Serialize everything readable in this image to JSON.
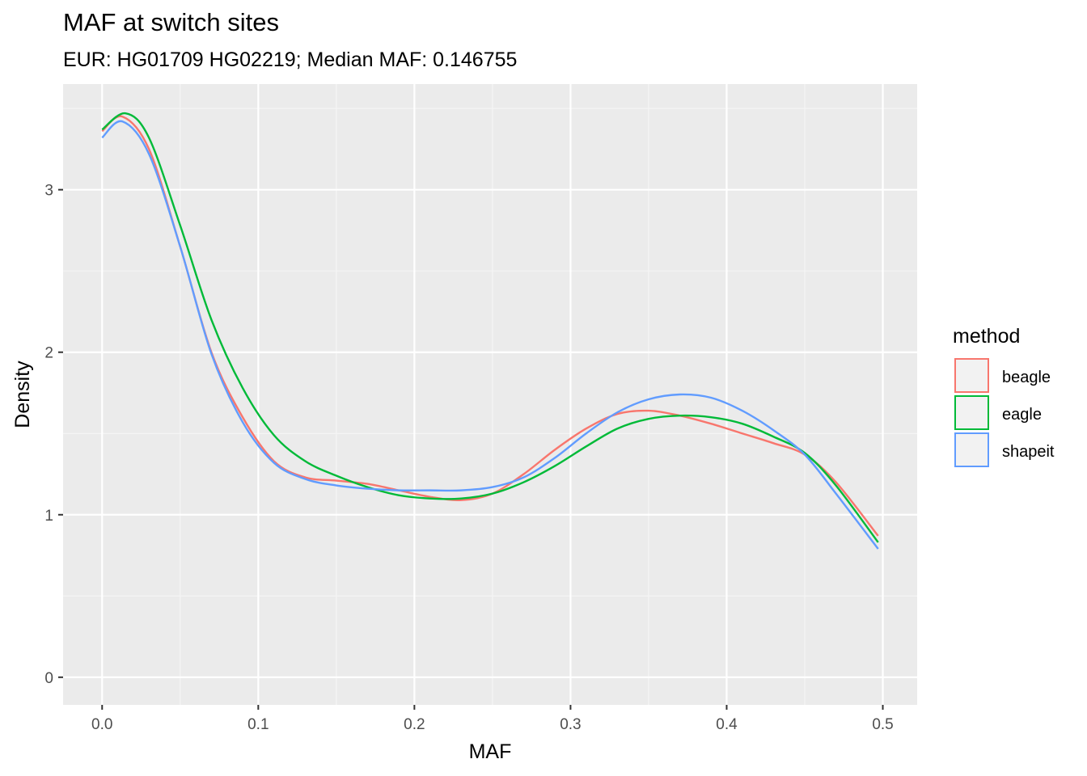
{
  "chart_data": {
    "type": "line",
    "title": "MAF at switch sites",
    "subtitle": "EUR: HG01709 HG02219; Median MAF: 0.146755",
    "xlabel": "MAF",
    "ylabel": "Density",
    "xlim": [
      -0.025,
      0.522
    ],
    "ylim": [
      -0.17,
      3.65
    ],
    "x_ticks": [
      0.0,
      0.1,
      0.2,
      0.3,
      0.4,
      0.5
    ],
    "x_tick_labels": [
      "0.0",
      "0.1",
      "0.2",
      "0.3",
      "0.4",
      "0.5"
    ],
    "y_ticks": [
      0,
      1,
      2,
      3
    ],
    "y_tick_labels": [
      "0",
      "1",
      "2",
      "3"
    ],
    "grid": true,
    "legend": {
      "title": "method",
      "position": "right"
    },
    "series": [
      {
        "name": "beagle",
        "color": "#F8766D",
        "x": [
          0.0,
          0.013,
          0.03,
          0.05,
          0.07,
          0.09,
          0.11,
          0.13,
          0.15,
          0.17,
          0.19,
          0.21,
          0.23,
          0.25,
          0.27,
          0.29,
          0.31,
          0.33,
          0.35,
          0.37,
          0.39,
          0.41,
          0.43,
          0.45,
          0.47,
          0.497
        ],
        "y": [
          3.36,
          3.45,
          3.25,
          2.65,
          2.0,
          1.6,
          1.33,
          1.23,
          1.21,
          1.19,
          1.15,
          1.11,
          1.09,
          1.13,
          1.25,
          1.4,
          1.53,
          1.62,
          1.64,
          1.61,
          1.56,
          1.5,
          1.44,
          1.37,
          1.2,
          0.87
        ]
      },
      {
        "name": "eagle",
        "color": "#00BA38",
        "x": [
          0.0,
          0.015,
          0.03,
          0.05,
          0.07,
          0.09,
          0.11,
          0.13,
          0.15,
          0.17,
          0.19,
          0.21,
          0.23,
          0.25,
          0.27,
          0.29,
          0.31,
          0.33,
          0.35,
          0.37,
          0.39,
          0.41,
          0.43,
          0.45,
          0.47,
          0.497
        ],
        "y": [
          3.37,
          3.47,
          3.32,
          2.78,
          2.2,
          1.78,
          1.49,
          1.33,
          1.24,
          1.17,
          1.12,
          1.1,
          1.1,
          1.13,
          1.2,
          1.3,
          1.42,
          1.53,
          1.59,
          1.61,
          1.6,
          1.56,
          1.48,
          1.38,
          1.18,
          0.83
        ]
      },
      {
        "name": "shapeit",
        "color": "#619CFF",
        "x": [
          0.0,
          0.013,
          0.03,
          0.05,
          0.07,
          0.09,
          0.11,
          0.13,
          0.15,
          0.17,
          0.19,
          0.21,
          0.23,
          0.25,
          0.27,
          0.29,
          0.31,
          0.33,
          0.35,
          0.37,
          0.39,
          0.41,
          0.43,
          0.45,
          0.47,
          0.497
        ],
        "y": [
          3.32,
          3.42,
          3.22,
          2.65,
          1.99,
          1.57,
          1.32,
          1.22,
          1.18,
          1.16,
          1.15,
          1.15,
          1.15,
          1.17,
          1.23,
          1.35,
          1.5,
          1.63,
          1.71,
          1.74,
          1.72,
          1.64,
          1.52,
          1.37,
          1.13,
          0.79
        ]
      }
    ]
  }
}
